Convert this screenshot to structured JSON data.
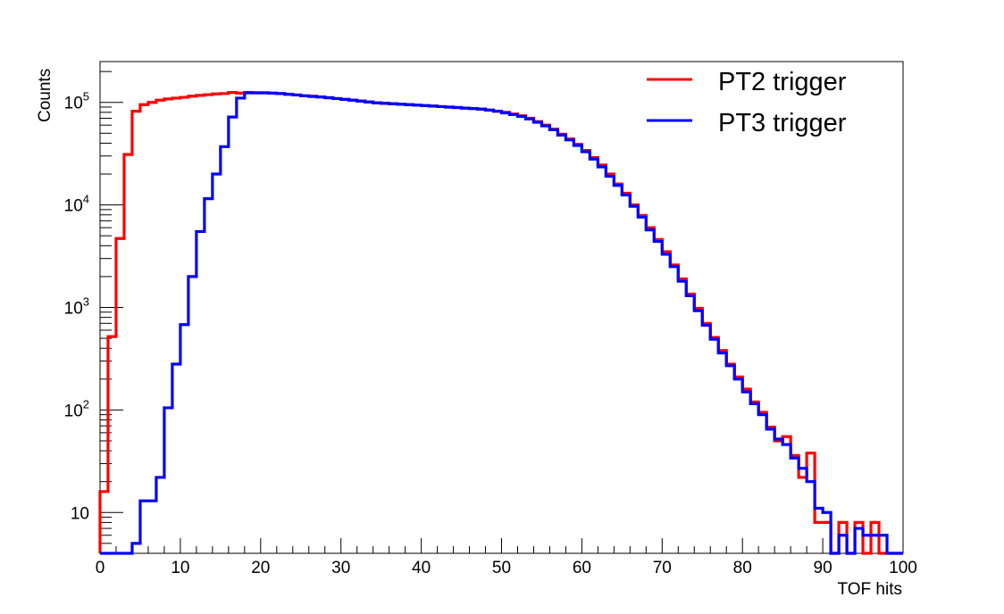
{
  "chart_data": {
    "type": "line",
    "style": "step-histogram",
    "title": "",
    "xlabel": "TOF hits",
    "ylabel": "Counts",
    "xlim": [
      0,
      100
    ],
    "ylim": [
      4,
      250000
    ],
    "y_scale": "log",
    "x_ticks": [
      0,
      10,
      20,
      30,
      40,
      50,
      60,
      70,
      80,
      90,
      100
    ],
    "y_ticks": [
      {
        "value": 10,
        "base": "10",
        "exp": ""
      },
      {
        "value": 100,
        "base": "10",
        "exp": "2"
      },
      {
        "value": 1000,
        "base": "10",
        "exp": "3"
      },
      {
        "value": 10000,
        "base": "10",
        "exp": "4"
      },
      {
        "value": 100000,
        "base": "10",
        "exp": "5"
      }
    ],
    "grid": false,
    "legend_position": "top-right",
    "bin_width": 1,
    "bin_start": 0,
    "series": [
      {
        "name": "PT2 trigger",
        "color": "#ff0000",
        "values": [
          16,
          520,
          4700,
          31000,
          82000,
          95000,
          100000,
          105000,
          108000,
          110000,
          112000,
          115000,
          117000,
          119000,
          121000,
          122000,
          125000,
          123000,
          125000,
          124000,
          124000,
          123000,
          122000,
          120000,
          118000,
          116000,
          115000,
          113000,
          111000,
          109000,
          107000,
          105000,
          103000,
          101000,
          99000,
          98000,
          97000,
          96000,
          95000,
          94000,
          93000,
          92000,
          91000,
          90000,
          89000,
          88000,
          87000,
          86000,
          84000,
          82000,
          80000,
          77000,
          74000,
          70000,
          65000,
          60000,
          55000,
          49000,
          44000,
          39000,
          34000,
          29000,
          24500,
          20000,
          16000,
          13000,
          10000,
          7900,
          6000,
          4600,
          3500,
          2600,
          1900,
          1350,
          980,
          700,
          510,
          380,
          280,
          210,
          160,
          120,
          95,
          68,
          50,
          55,
          36,
          22,
          38,
          8,
          8,
          4,
          8,
          4,
          8,
          4,
          8,
          4,
          4,
          4
        ],
        "underflow_baseline": 4
      },
      {
        "name": "PT3 trigger",
        "color": "#0000ff",
        "values": [
          4,
          4,
          4,
          4,
          5,
          13,
          13,
          22,
          105,
          280,
          680,
          2000,
          5500,
          11500,
          20000,
          37000,
          72000,
          110000,
          124000,
          124000,
          124000,
          123000,
          122000,
          120000,
          118000,
          116000,
          114000,
          113000,
          111000,
          109000,
          107000,
          105000,
          103000,
          101000,
          99000,
          98000,
          97000,
          96000,
          95000,
          94000,
          93000,
          92000,
          91000,
          90000,
          89000,
          88000,
          87000,
          86000,
          84000,
          82000,
          79000,
          76000,
          73000,
          69000,
          64000,
          59000,
          54000,
          48000,
          43000,
          38000,
          33000,
          28000,
          23500,
          19000,
          15500,
          12500,
          9700,
          7600,
          5700,
          4400,
          3300,
          2500,
          1800,
          1300,
          930,
          670,
          490,
          360,
          270,
          200,
          150,
          115,
          90,
          65,
          52,
          46,
          34,
          27,
          20,
          11,
          10,
          4,
          6,
          4,
          7,
          6,
          6,
          6,
          4,
          4
        ],
        "underflow_baseline": 4
      }
    ]
  }
}
